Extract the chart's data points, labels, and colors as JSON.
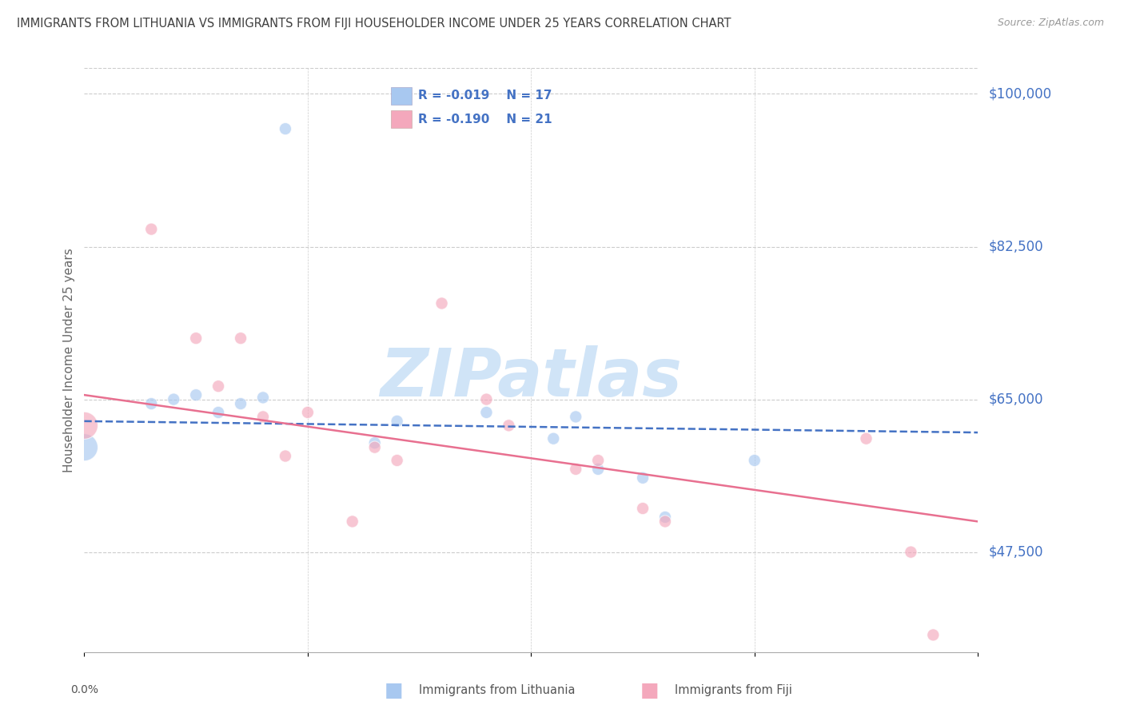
{
  "title": "IMMIGRANTS FROM LITHUANIA VS IMMIGRANTS FROM FIJI HOUSEHOLDER INCOME UNDER 25 YEARS CORRELATION CHART",
  "source": "Source: ZipAtlas.com",
  "ylabel": "Householder Income Under 25 years",
  "xmin": 0.0,
  "xmax": 0.04,
  "ymin": 36000,
  "ymax": 103000,
  "yticks": [
    47500,
    65000,
    82500,
    100000
  ],
  "ytick_labels": [
    "$47,500",
    "$65,000",
    "$82,500",
    "$100,000"
  ],
  "background_color": "#ffffff",
  "grid_color": "#cccccc",
  "lithuania_color": "#a8c8f0",
  "fiji_color": "#f4a8bc",
  "title_color": "#404040",
  "axis_label_color": "#666666",
  "right_label_color": "#4472c4",
  "legend_text_color": "#4472c4",
  "legend_r_lithuania": "R = -0.019",
  "legend_n_lithuania": "N = 17",
  "legend_r_fiji": "R = -0.190",
  "legend_n_fiji": "N = 21",
  "lithuania_scatter_x": [
    0.0,
    0.003,
    0.004,
    0.005,
    0.006,
    0.007,
    0.008,
    0.009,
    0.013,
    0.014,
    0.018,
    0.021,
    0.022,
    0.023,
    0.025,
    0.026,
    0.03
  ],
  "lithuania_scatter_y": [
    59500,
    64500,
    65000,
    65500,
    63500,
    64500,
    65200,
    96000,
    60000,
    62500,
    63500,
    60500,
    63000,
    57000,
    56000,
    51500,
    58000
  ],
  "lithuania_scatter_sizes": [
    600,
    120,
    120,
    120,
    120,
    120,
    120,
    120,
    120,
    120,
    120,
    120,
    120,
    120,
    120,
    120,
    120
  ],
  "fiji_scatter_x": [
    0.0,
    0.003,
    0.005,
    0.006,
    0.007,
    0.008,
    0.009,
    0.01,
    0.012,
    0.013,
    0.014,
    0.016,
    0.018,
    0.019,
    0.022,
    0.023,
    0.025,
    0.026,
    0.035,
    0.037,
    0.038
  ],
  "fiji_scatter_y": [
    62000,
    84500,
    72000,
    66500,
    72000,
    63000,
    58500,
    63500,
    51000,
    59500,
    58000,
    76000,
    65000,
    62000,
    57000,
    58000,
    52500,
    51000,
    60500,
    47500,
    38000
  ],
  "fiji_scatter_sizes": [
    600,
    120,
    120,
    120,
    120,
    120,
    120,
    120,
    120,
    120,
    120,
    120,
    120,
    120,
    120,
    120,
    120,
    120,
    120,
    120,
    120
  ],
  "lithuania_line_x": [
    0.0,
    0.04
  ],
  "lithuania_line_y": [
    62500,
    61200
  ],
  "fiji_line_x": [
    0.0,
    0.04
  ],
  "fiji_line_y": [
    65500,
    51000
  ],
  "watermark_text": "ZIPatlas",
  "watermark_color": "#d0e4f7",
  "bottom_legend_label1": "Immigrants from Lithuania",
  "bottom_legend_label2": "Immigrants from Fiji"
}
